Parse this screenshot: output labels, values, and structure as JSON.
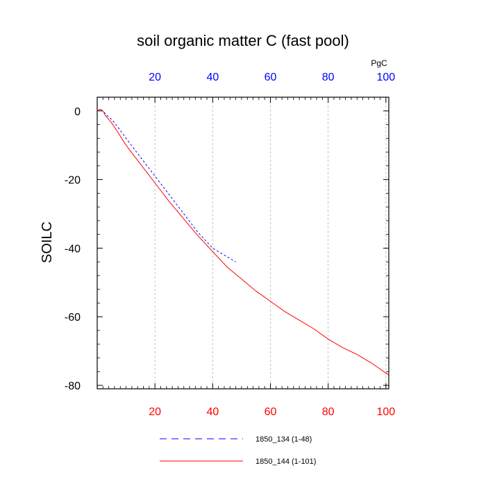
{
  "chart_data": {
    "type": "line",
    "title": "soil organic matter C (fast pool)",
    "ylabel": "SOILC",
    "top_axis_unit": "PgC",
    "xlim": [
      0,
      101
    ],
    "ylim": [
      -81,
      4
    ],
    "x_ticks": [
      20,
      40,
      60,
      80,
      100
    ],
    "y_ticks": [
      0,
      -20,
      -40,
      -60,
      -80
    ],
    "bottom_tick_color": "#ff0000",
    "top_tick_color": "#0000ff",
    "grid_x": true,
    "series": [
      {
        "name": "1850_134 (1-48)",
        "color": "#0000ff",
        "dash": "dashed",
        "x": [
          0,
          1,
          2,
          3,
          5,
          7,
          10,
          15,
          20,
          25,
          30,
          35,
          40,
          45,
          48
        ],
        "y": [
          0,
          0.5,
          0,
          -1,
          -2.5,
          -4.5,
          -8,
          -13.5,
          -19,
          -24.5,
          -30,
          -35.5,
          -40,
          -42.5,
          -44
        ]
      },
      {
        "name": "1850_144 (1-101)",
        "color": "#ff0000",
        "dash": "solid",
        "x": [
          0,
          1,
          2,
          3,
          5,
          7,
          10,
          15,
          20,
          25,
          30,
          35,
          40,
          45,
          50,
          55,
          60,
          65,
          70,
          75,
          80,
          85,
          90,
          95,
          101
        ],
        "y": [
          0,
          0.5,
          0,
          -1.5,
          -3.5,
          -6,
          -10,
          -15.5,
          -21,
          -26.5,
          -31.5,
          -36.5,
          -41,
          -45.5,
          -49,
          -52.5,
          -55.5,
          -58.5,
          -61,
          -63.5,
          -66.5,
          -69,
          -71,
          -73.5,
          -77
        ]
      }
    ],
    "legend": [
      {
        "label": "1850_134 (1-48)",
        "color": "#0000ff",
        "dash": "dashed"
      },
      {
        "label": "1850_144 (1-101)",
        "color": "#ff0000",
        "dash": "solid"
      }
    ],
    "legend_position": "bottom"
  }
}
